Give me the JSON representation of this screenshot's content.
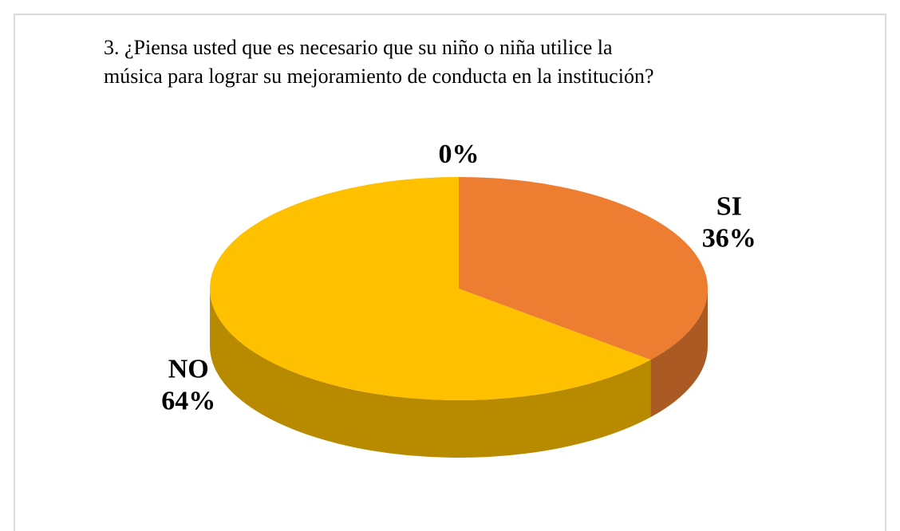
{
  "chart_data": {
    "type": "pie3d",
    "title": "3. ¿Piensa usted que es necesario que su niño o niña utilice la música para lograr su mejoramiento de conducta en la institución?",
    "categories": [
      null,
      "SI",
      "NO"
    ],
    "values": [
      0,
      36,
      64
    ],
    "value_labels": [
      "0%",
      "36%",
      "64%"
    ],
    "colors": [
      "#A5A5A5",
      "#ED7D31",
      "#FFC000"
    ]
  }
}
